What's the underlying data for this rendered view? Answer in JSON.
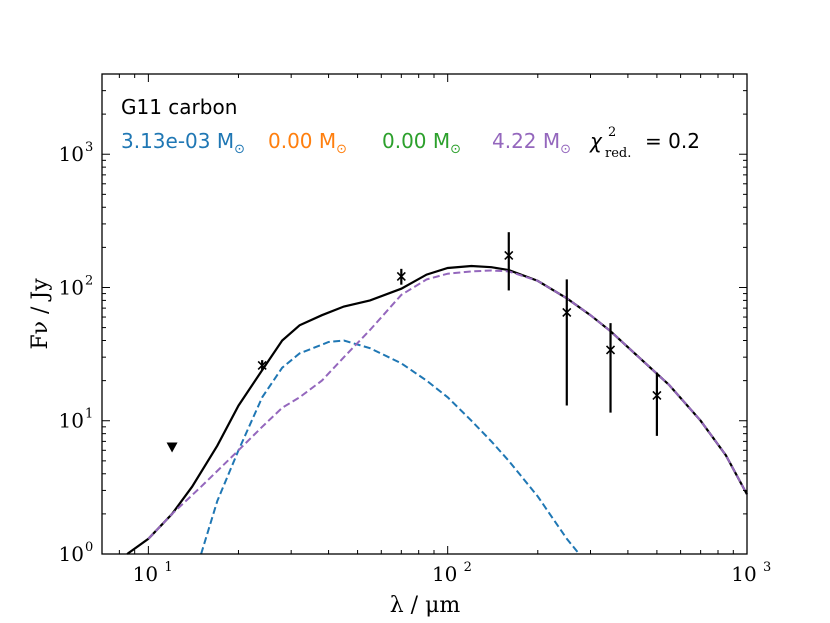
{
  "chart_data": {
    "type": "line",
    "scale": "log-log",
    "xlabel": "λ / μm",
    "ylabel": "Fν / Jy",
    "xlim": [
      7,
      1000
    ],
    "ylim": [
      1,
      4000
    ],
    "x_ticks": [
      {
        "value": 10,
        "base": "10",
        "exp": "1"
      },
      {
        "value": 100,
        "base": "10",
        "exp": "2"
      },
      {
        "value": 1000,
        "base": "10",
        "exp": "3"
      }
    ],
    "y_ticks": [
      {
        "value": 1,
        "base": "10",
        "exp": "0"
      },
      {
        "value": 10,
        "base": "10",
        "exp": "1"
      },
      {
        "value": 100,
        "base": "10",
        "exp": "2"
      },
      {
        "value": 1000,
        "base": "10",
        "exp": "3"
      }
    ],
    "annotation": {
      "title": "G11 carbon",
      "mass_unit": "M",
      "sun_symbol": "⊙",
      "components": [
        {
          "value": "3.13e-03",
          "color": "#1f77b4"
        },
        {
          "value": "0.00",
          "color": "#ff7f0e"
        },
        {
          "value": "0.00",
          "color": "#2ca02c"
        },
        {
          "value": "4.22",
          "color": "#9467bd"
        }
      ],
      "chi_symbol": "χ",
      "chi_sup": "2",
      "chi_sub": "red.",
      "chi_value": "= 0.2"
    },
    "series": [
      {
        "style": "solid",
        "color": "#000000",
        "points": [
          [
            8.5,
            1.0
          ],
          [
            10,
            1.3
          ],
          [
            12,
            2.0
          ],
          [
            14,
            3.2
          ],
          [
            17,
            6.5
          ],
          [
            20,
            13
          ],
          [
            24,
            24
          ],
          [
            28,
            40
          ],
          [
            32,
            52
          ],
          [
            38,
            62
          ],
          [
            45,
            72
          ],
          [
            55,
            80
          ],
          [
            70,
            98
          ],
          [
            85,
            125
          ],
          [
            100,
            140
          ],
          [
            120,
            145
          ],
          [
            140,
            142
          ],
          [
            160,
            135
          ],
          [
            200,
            112
          ],
          [
            250,
            83
          ],
          [
            300,
            62
          ],
          [
            350,
            47
          ],
          [
            450,
            28
          ],
          [
            550,
            18.5
          ],
          [
            700,
            10
          ],
          [
            850,
            5.5
          ],
          [
            1000,
            2.8
          ]
        ]
      },
      {
        "style": "dashed",
        "color": "#1f77b4",
        "points": [
          [
            15,
            1.0
          ],
          [
            17,
            2.5
          ],
          [
            20,
            6
          ],
          [
            24,
            15
          ],
          [
            28,
            25
          ],
          [
            32,
            32
          ],
          [
            40,
            39
          ],
          [
            45,
            40
          ],
          [
            55,
            35
          ],
          [
            70,
            27
          ],
          [
            85,
            20
          ],
          [
            100,
            15
          ],
          [
            120,
            10
          ],
          [
            140,
            7
          ],
          [
            160,
            5
          ],
          [
            200,
            2.7
          ],
          [
            250,
            1.3
          ],
          [
            275,
            1.0
          ]
        ]
      },
      {
        "style": "dashed",
        "color": "#9467bd",
        "points": [
          [
            10,
            1.3
          ],
          [
            12,
            2.0
          ],
          [
            15,
            3.2
          ],
          [
            20,
            6
          ],
          [
            24,
            9
          ],
          [
            28,
            12.5
          ],
          [
            32,
            15
          ],
          [
            38,
            20
          ],
          [
            45,
            30
          ],
          [
            55,
            48
          ],
          [
            70,
            88
          ],
          [
            85,
            115
          ],
          [
            100,
            127
          ],
          [
            120,
            132
          ],
          [
            140,
            134
          ],
          [
            160,
            132
          ],
          [
            200,
            112
          ],
          [
            250,
            83
          ],
          [
            300,
            62
          ],
          [
            350,
            47
          ],
          [
            450,
            28
          ],
          [
            550,
            18.5
          ],
          [
            700,
            10
          ],
          [
            850,
            5.5
          ],
          [
            1000,
            2.8
          ]
        ]
      }
    ],
    "observations": [
      {
        "x": 24,
        "y": 26,
        "yerr_low": 24,
        "yerr_high": 28.5
      },
      {
        "x": 70,
        "y": 121,
        "yerr_low": 105,
        "yerr_high": 138
      },
      {
        "x": 160,
        "y": 174,
        "yerr_low": 95,
        "yerr_high": 260
      },
      {
        "x": 250,
        "y": 65,
        "yerr_low": 13,
        "yerr_high": 115
      },
      {
        "x": 350,
        "y": 34,
        "yerr_low": 11.5,
        "yerr_high": 54
      },
      {
        "x": 500,
        "y": 15.5,
        "yerr_low": 7.7,
        "yerr_high": 23
      }
    ],
    "upper_limits": [
      {
        "x": 12,
        "y": 6.3
      }
    ]
  }
}
